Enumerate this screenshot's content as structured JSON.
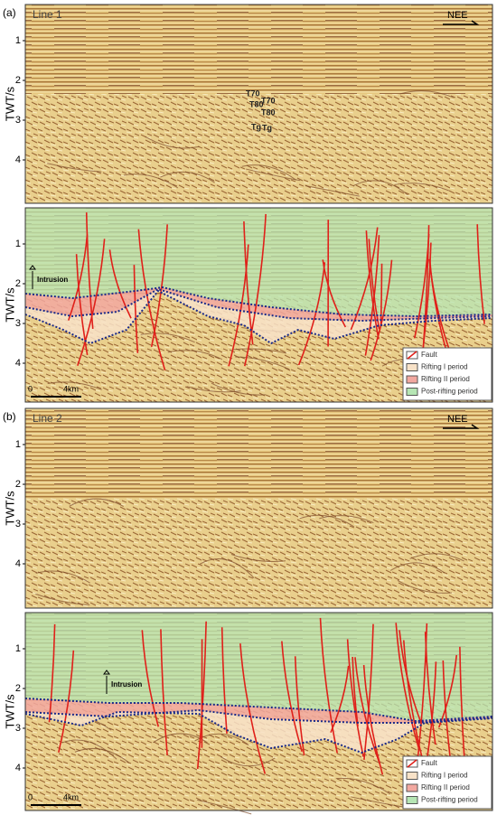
{
  "panels": [
    {
      "label": "(a)",
      "line": "Line 1",
      "direction": "NEE"
    },
    {
      "label": "(b)",
      "line": "Line 2",
      "direction": "NEE"
    }
  ],
  "axis": {
    "title": "TWT/s",
    "ticks": [
      1,
      2,
      3,
      4
    ]
  },
  "interpretation": {
    "intrusion": "Intrusion",
    "horizons": [
      "T70",
      "T80",
      "Tg"
    ],
    "scale": [
      "0",
      "4km"
    ]
  },
  "legend": [
    "Fault",
    "Rifting I period",
    "Rifting II period",
    "Post-rifting period"
  ]
}
